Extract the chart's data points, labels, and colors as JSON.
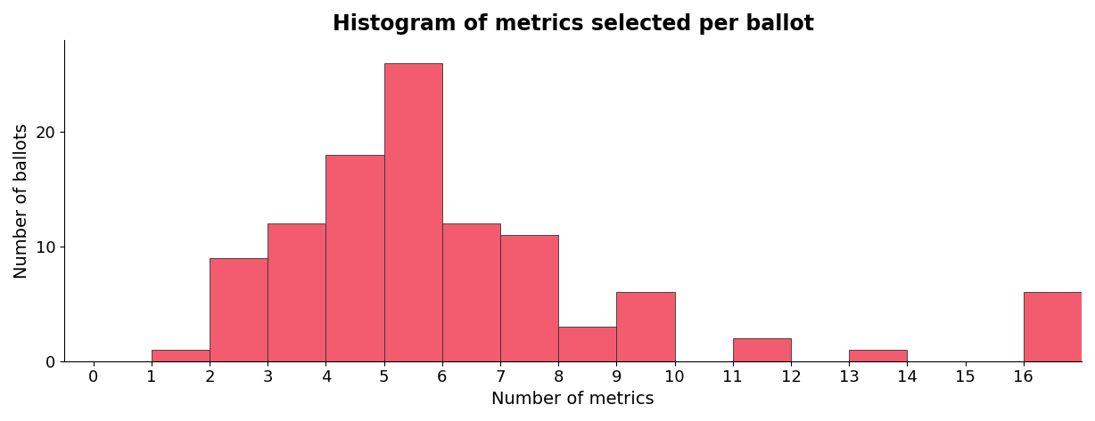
{
  "title": "Histogram of metrics selected per ballot",
  "xlabel": "Number of metrics",
  "ylabel": "Number of ballots",
  "bar_positions": [
    1,
    2,
    3,
    4,
    5,
    6,
    7,
    8,
    9,
    11,
    13,
    16
  ],
  "bar_heights": [
    1,
    9,
    12,
    18,
    26,
    12,
    11,
    3,
    6,
    2,
    1,
    6
  ],
  "bar_color": "#F25C6E",
  "bar_edgecolor": "#333333",
  "bar_width": 1.0,
  "xlim": [
    -0.5,
    17
  ],
  "ylim": [
    0,
    28
  ],
  "xticks": [
    0,
    1,
    2,
    3,
    4,
    5,
    6,
    7,
    8,
    9,
    10,
    11,
    12,
    13,
    14,
    15,
    16
  ],
  "yticks": [
    0,
    10,
    20
  ],
  "title_fontsize": 17,
  "label_fontsize": 14,
  "tick_fontsize": 13,
  "background_color": "#ffffff"
}
